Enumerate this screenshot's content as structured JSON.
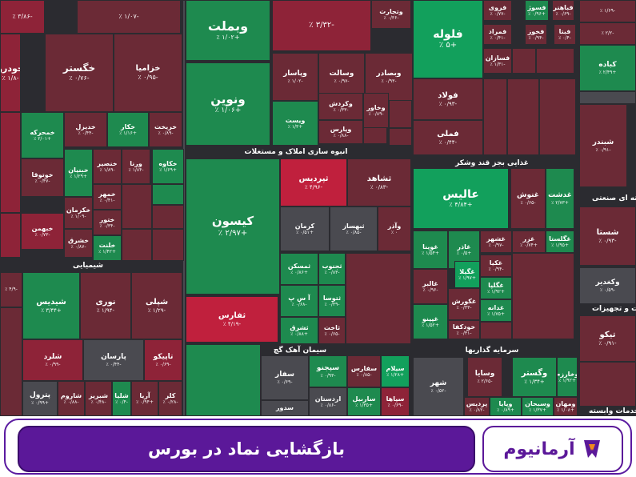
{
  "colors": {
    "strong_green": "#12a05c",
    "green": "#1e8a4f",
    "dark_green": "#2d5a3a",
    "neutral": "#4a4a50",
    "dark_red": "#6b2a36",
    "red": "#8e2338",
    "strong_red": "#c0203d",
    "banner": "#5b1899"
  },
  "sectors": [
    {
      "id": "chem",
      "label": "شیمیایی"
    },
    {
      "id": "build",
      "label": "انبوه سازی املاک و مستغلات"
    },
    {
      "id": "cement",
      "label": "سیمان آهک گچ"
    },
    {
      "id": "food",
      "label": "غذایی بجز قند وشکر"
    },
    {
      "id": "invest",
      "label": "سرمایه گذاریها"
    },
    {
      "id": "ind",
      "label": "سته ای صنعتی"
    },
    {
      "id": "equip",
      "label": "الات و تجهیزات"
    },
    {
      "id": "serv",
      "label": "ی خدمات وابسته"
    }
  ],
  "tiles": [
    {
      "name": "",
      "change": "٪ ۳/۸۶-"
    },
    {
      "name": "",
      "change": "٪ ۱/۰۷-"
    },
    {
      "name": "خودرو",
      "change": "٪ ۱/۸-"
    },
    {
      "name": "خگستر",
      "change": "٪ ۰/۷۶-"
    },
    {
      "name": "خزامیا",
      "change": "٪ ۰/۹۵-"
    },
    {
      "name": "خمحرکه",
      "change": "٪ ۲/۰۱+"
    },
    {
      "name": "خدیزل",
      "change": "٪ ۰/۴۴-"
    },
    {
      "name": "خکار",
      "change": "٪ ۱/۱۶+"
    },
    {
      "name": "خریخت",
      "change": "٪ ۰/۸۹-"
    },
    {
      "name": "خبنیان",
      "change": "٪ ۱/۲۹+"
    },
    {
      "name": "خنصیر",
      "change": "٪ ۱/۸۹-"
    },
    {
      "name": "ورنا",
      "change": "٪ ۱/۸۴-"
    },
    {
      "name": "خکاوه",
      "change": "٪ ۱/۶۹+"
    },
    {
      "name": "خوتوقا",
      "change": "٪ ۰/۴۷-"
    },
    {
      "name": "خکرمان",
      "change": "٪ ۱/۰۹-"
    },
    {
      "name": "خمهر",
      "change": "٪ ۰/۴۱-"
    },
    {
      "name": "ختور",
      "change": "٪ ۰/۳۴-"
    },
    {
      "name": "خبهمن",
      "change": "٪ ۰/۷۳-"
    },
    {
      "name": "خشرق",
      "change": "٪ ۰/۸۷-"
    },
    {
      "name": "خلنت",
      "change": "٪ ۱/۴۲+"
    },
    {
      "name": "شیدیس",
      "change": "٪ ۳/۴۴+"
    },
    {
      "name": "نوری",
      "change": "٪ ۱/۹۴-"
    },
    {
      "name": "شپلی",
      "change": "٪ ۱/۲۹-"
    },
    {
      "name": "شلرد",
      "change": "٪ ۰/۹۹-"
    },
    {
      "name": "پارسان",
      "change": "٪ ۰/۴۴-"
    },
    {
      "name": "تاپیکو",
      "change": "٪ ۰/۶۹-"
    },
    {
      "name": "پترول",
      "change": "٪ ۰/۹۹+"
    },
    {
      "name": "شاروم",
      "change": "٪ ۰/۸۸-"
    },
    {
      "name": "شبریز",
      "change": "٪ ۰/۴۸-"
    },
    {
      "name": "شلیا",
      "change": "٪ ۰/۴-"
    },
    {
      "name": "آریا",
      "change": "٪ ۰/۹۴+"
    },
    {
      "name": "کلر",
      "change": "٪ ۰/۲۸-"
    },
    {
      "name": "وبملت",
      "change": "٪ ۱/۰۲+"
    },
    {
      "name": "",
      "change": "٪ ۳/۳۲-"
    },
    {
      "name": "وتجارت",
      "change": "٪ ۰/۳۶-"
    },
    {
      "name": "ونوین",
      "change": "٪ ۱/۰۶+"
    },
    {
      "name": "وپاسار",
      "change": "٪ ۱/۰۲-"
    },
    {
      "name": "وسالت",
      "change": "٪ ۰/۹۷-"
    },
    {
      "name": "وبصادر",
      "change": "٪ ۰/۹۳-"
    },
    {
      "name": "ویست",
      "change": "٪ ۱/۳+"
    },
    {
      "name": "وکردش",
      "change": "٪ ۰/۳۳-"
    },
    {
      "name": "وخاور",
      "change": "٪ ۰/۸۹-"
    },
    {
      "name": "وپارس",
      "change": "٪ ۰/۸۸-"
    },
    {
      "name": "کیسون",
      "change": "٪ ۲/۹۷+"
    },
    {
      "name": "ثپردیس",
      "change": "٪ ۴/۹۶-"
    },
    {
      "name": "ثشاهد",
      "change": "٪ ۰/۸۳-"
    },
    {
      "name": "کرمان",
      "change": "٪ ۰/۵۱+"
    },
    {
      "name": "ثبهساز",
      "change": "٪ ۰/۸۵-"
    },
    {
      "name": "وآذر",
      "change": "٪ ۰"
    },
    {
      "name": "ثفارس",
      "change": "٪ ۴/۱۹-"
    },
    {
      "name": "ثمسکن",
      "change": "٪ ۰/۸۶+"
    },
    {
      "name": "ثجنوب",
      "change": "٪ ۰/۸۳-"
    },
    {
      "name": "آ س پ",
      "change": "٪ ۰/۶۸-"
    },
    {
      "name": "ثتوسا",
      "change": "٪ ۰/۴۹-"
    },
    {
      "name": "ثشرق",
      "change": "٪ ۰/۸۸+"
    },
    {
      "name": "ثاخت",
      "change": "٪ ۰/۶۵-"
    },
    {
      "name": "فلوله",
      "change": "٪ ۵+"
    },
    {
      "name": "فروی",
      "change": "٪ ۰/۷۷-"
    },
    {
      "name": "فسوژ",
      "change": "٪ ۰/۹۶+"
    },
    {
      "name": "فباهنر",
      "change": "٪ ۰/۶۹-"
    },
    {
      "name": "فمراد",
      "change": "٪ ۰/۴۱-"
    },
    {
      "name": "فخوز",
      "change": "٪ ۰/۹۴-"
    },
    {
      "name": "فبتا",
      "change": "٪ ۰/۴-"
    },
    {
      "name": "فسازان",
      "change": "٪ ۱/۳۱-"
    },
    {
      "name": "فولاد",
      "change": "٪ ۰/۹۳-"
    },
    {
      "name": "فملی",
      "change": "٪ ۰/۴۴-"
    },
    {
      "name": "عالیس",
      "change": "٪ ۴/۸۴+"
    },
    {
      "name": "غنوش",
      "change": "٪ ۰/۶۵-"
    },
    {
      "name": "غدشت",
      "change": "٪ ۲/۷۳+"
    },
    {
      "name": "غوینا",
      "change": "٪ ۱/۵۴+"
    },
    {
      "name": "غاذر",
      "change": "٪ ۰/۵+"
    },
    {
      "name": "غشهر",
      "change": "٪ ۰/۹۷-"
    },
    {
      "name": "غزر",
      "change": "٪ ۰/۷۴+"
    },
    {
      "name": "غگلستا",
      "change": "٪ ۱/۹۵+"
    },
    {
      "name": "غگیلا",
      "change": "٪ ۱/۹۷+"
    },
    {
      "name": "غکیا",
      "change": "٪ ۰/۹۴-"
    },
    {
      "name": "غگلپا",
      "change": "٪ ۱/۹۲+"
    },
    {
      "name": "غالبر",
      "change": "٪ ۰/۹۶-"
    },
    {
      "name": "غدانه",
      "change": "٪ ۱/۷۵+"
    },
    {
      "name": "غکورش",
      "change": "٪ ۰/۳۳-"
    },
    {
      "name": "غپینو",
      "change": "٪ ۱/۵۲+"
    },
    {
      "name": "خودکفا",
      "change": "٪ ۰/۳۱-"
    },
    {
      "name": "کباده",
      "change": "٪ ۲/۴۹+"
    },
    {
      "name": "شبندر",
      "change": "٪ ۰/۹۱-"
    },
    {
      "name": "شستا",
      "change": "٪ ۰/۹۳-"
    },
    {
      "name": "وکغدیر",
      "change": "٪ ۰/۵۹-"
    },
    {
      "name": "تیکو",
      "change": "٪ ۰/۹۱-"
    },
    {
      "name": "سفار",
      "change": "٪ ۰/۶۹-"
    },
    {
      "name": "سپجنو",
      "change": "٪ ۰/۹۳-"
    },
    {
      "name": "سفارس",
      "change": "٪ ۰/۸۵-"
    },
    {
      "name": "سیلام",
      "change": "٪ ۱/۲۸+"
    },
    {
      "name": "اردستان",
      "change": "٪ ۰/۸۶-"
    },
    {
      "name": "ساربیل",
      "change": "٪ ۱/۳۵+"
    },
    {
      "name": "سپاها",
      "change": "٪ ۰/۶۹-"
    },
    {
      "name": "سدور",
      "change": ""
    },
    {
      "name": "وسایا",
      "change": "٪ ۲/۶۵-"
    },
    {
      "name": "وگستر",
      "change": "٪ ۱/۳۴+"
    },
    {
      "name": "وخارزم",
      "change": "٪ ۱/۹۲+"
    },
    {
      "name": "شهر",
      "change": "٪ ۰/۵۲-"
    },
    {
      "name": "وپایا",
      "change": "٪ ۰/۸۹+"
    },
    {
      "name": "وسبحان",
      "change": "٪ ۱/۳۷+"
    },
    {
      "name": "پردیس",
      "change": "٪ ۰/۸۲-"
    },
    {
      "name": "ومهان",
      "change": "٪ ۱/۰۸+"
    },
    {
      "name": "",
      "change": "٪ ۱/۶۹-"
    },
    {
      "name": "",
      "change": "٪ ۲/۲-"
    },
    {
      "name": "",
      "change": "٪ ۴/۹-"
    }
  ],
  "footer": {
    "title": "بازگشایی نماد در بورس",
    "brand": "آرمانیوم"
  }
}
